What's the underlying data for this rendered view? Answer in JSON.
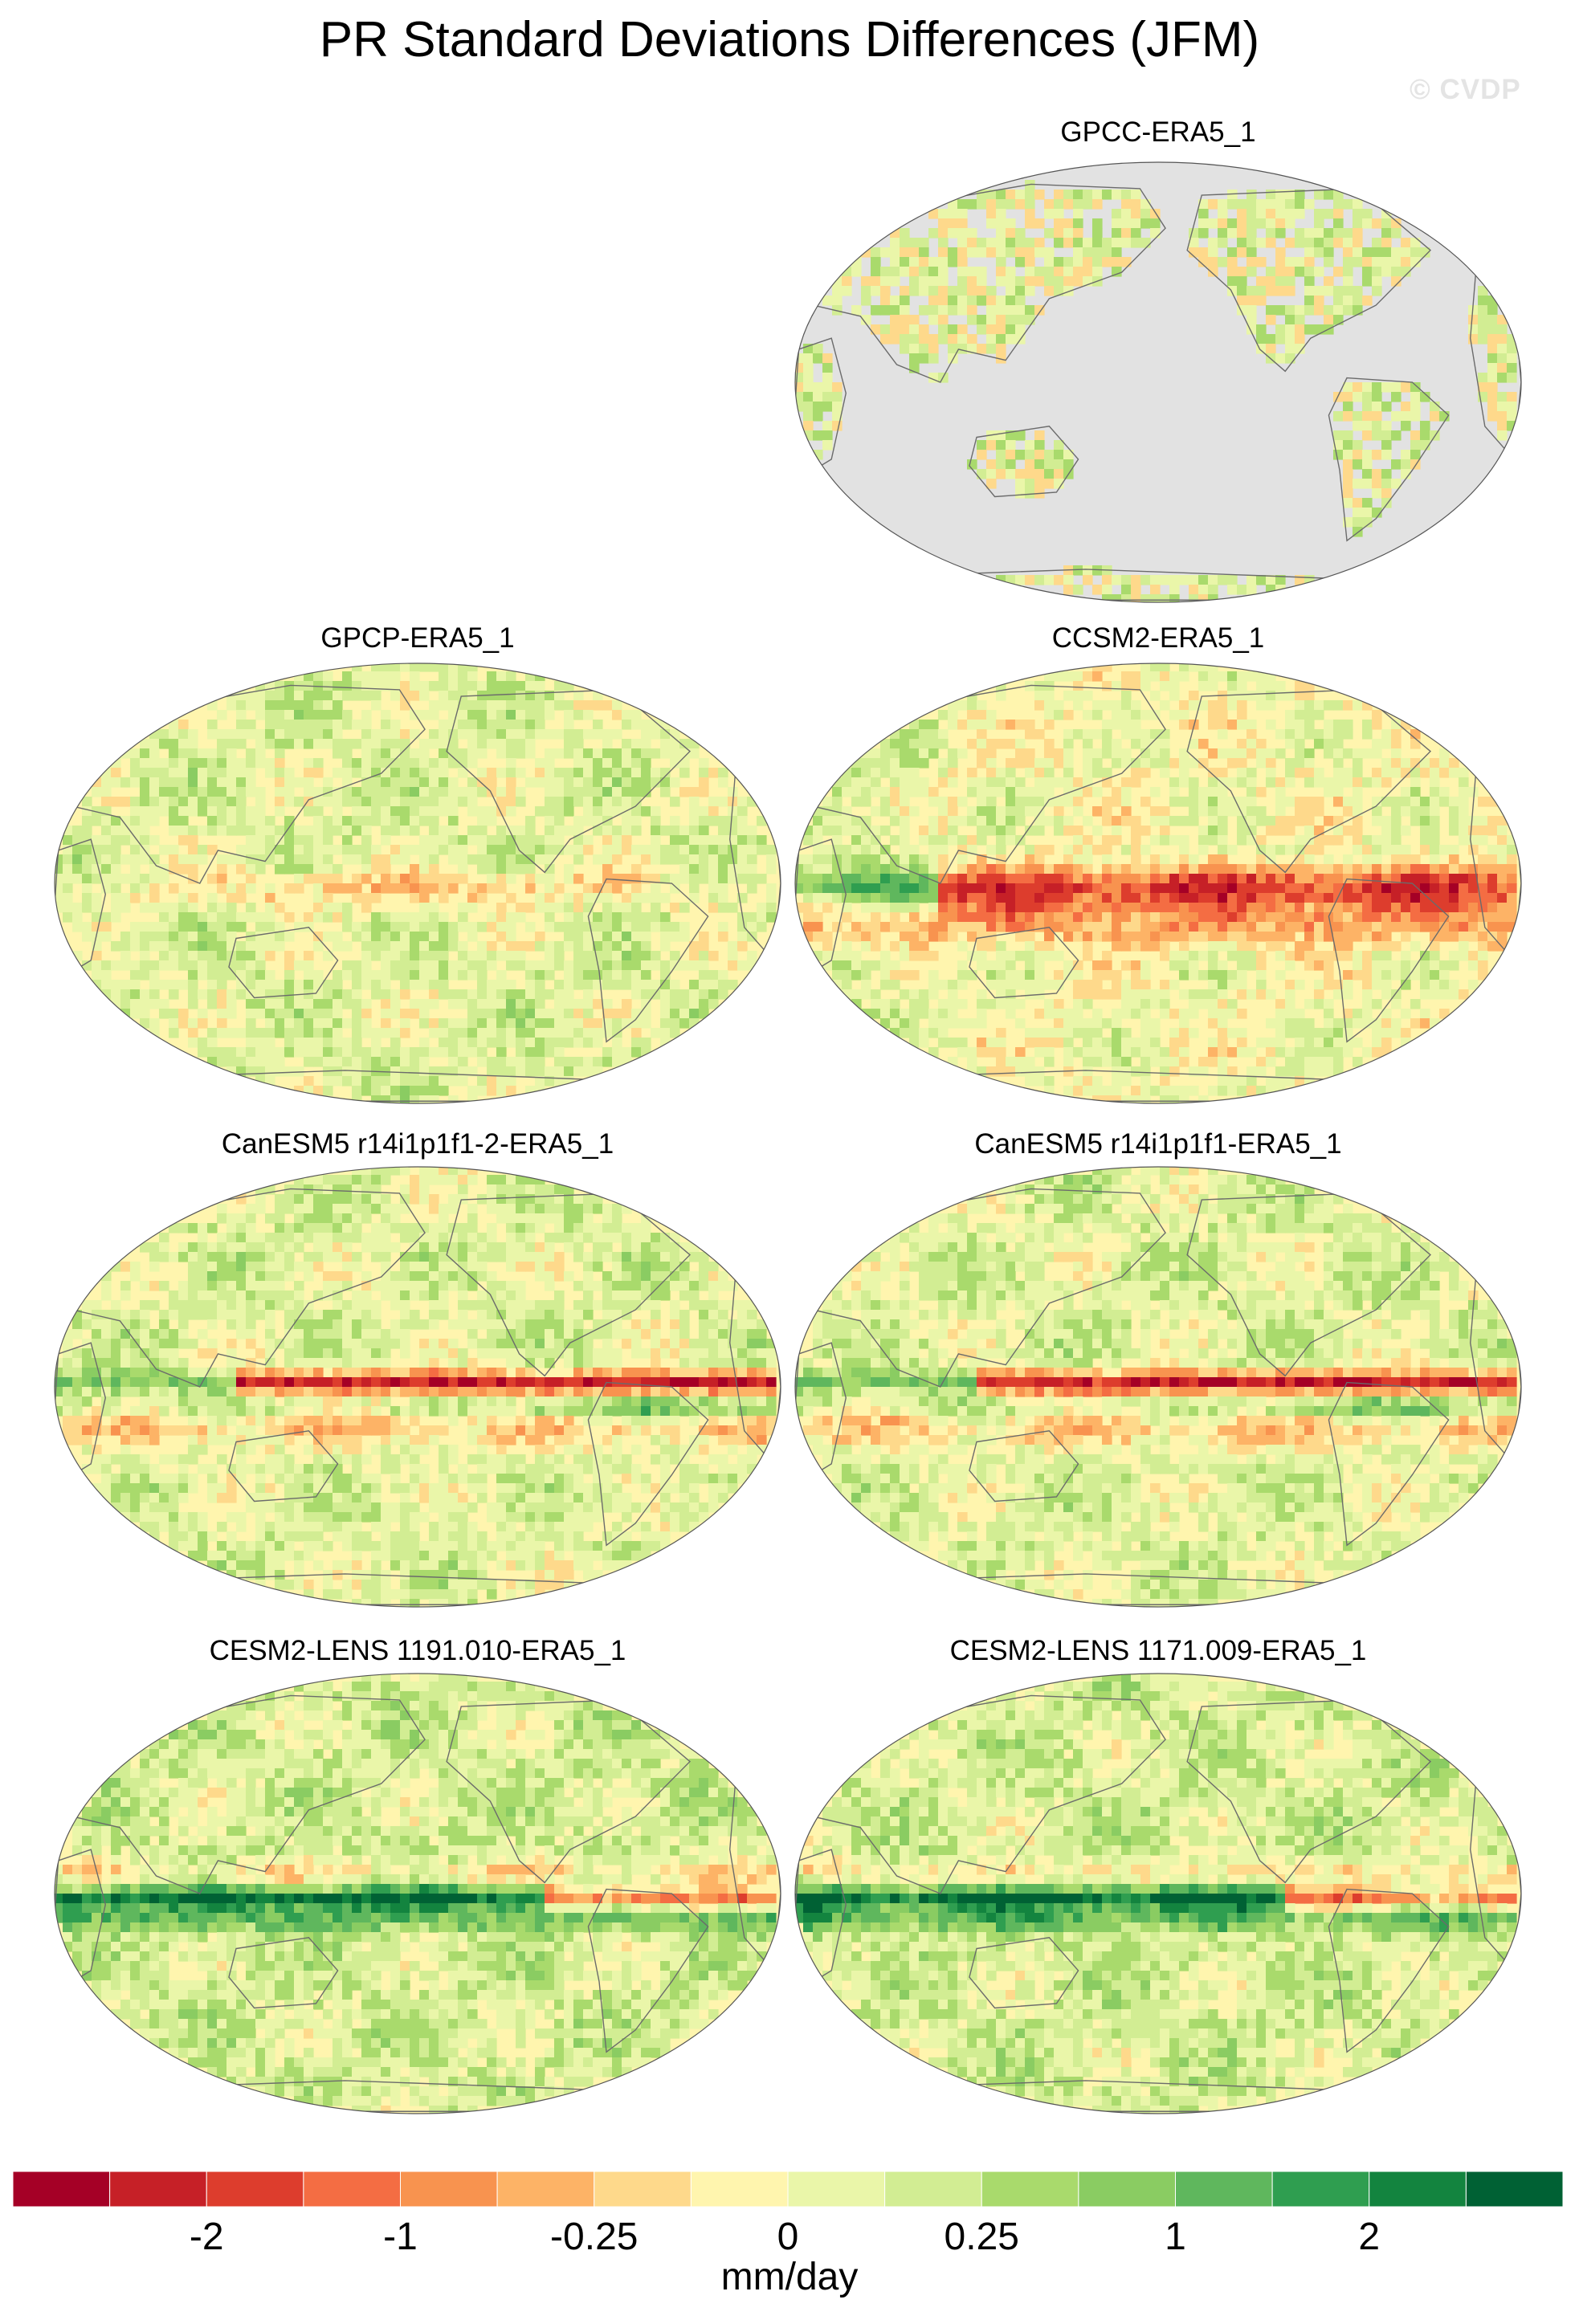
{
  "title": "PR Standard Deviations Differences (JFM)",
  "watermark": "© CVDP",
  "panels": [
    {
      "id": "gpcc",
      "label": "GPCC-ERA5_1",
      "style": "land-only",
      "intensity": 0.35
    },
    {
      "id": "gpcp",
      "label": "GPCP-ERA5_1",
      "style": "global",
      "intensity": 0.45
    },
    {
      "id": "ccsm2",
      "label": "CCSM2-ERA5_1",
      "style": "global",
      "intensity": 0.85
    },
    {
      "id": "canesm5_2",
      "label": "CanESM5 r14i1p1f1-2-ERA5_1",
      "style": "global",
      "intensity": 0.95
    },
    {
      "id": "canesm5_1",
      "label": "CanESM5 r14i1p1f1-ERA5_1",
      "style": "global",
      "intensity": 0.95
    },
    {
      "id": "cesm2_1191",
      "label": "CESM2-LENS 1191.010-ERA5_1",
      "style": "global",
      "intensity": 0.9
    },
    {
      "id": "cesm2_1171",
      "label": "CESM2-LENS 1171.009-ERA5_1",
      "style": "global",
      "intensity": 0.9
    }
  ],
  "colorbar": {
    "colors": [
      "#a50026",
      "#c62027",
      "#dd3d2d",
      "#f46d43",
      "#f8934f",
      "#fdb366",
      "#fed98b",
      "#fff5ae",
      "#eaf6a9",
      "#d2ed93",
      "#a9da6c",
      "#8acc62",
      "#5fb75d",
      "#2f9e50",
      "#13843f",
      "#006134"
    ],
    "tick_labels": [
      "-2",
      "-1",
      "-0.25",
      "0",
      "0.25",
      "1",
      "2"
    ],
    "units": "mm/day"
  },
  "legend": {
    "ocean_color": "#e2e2e2"
  }
}
